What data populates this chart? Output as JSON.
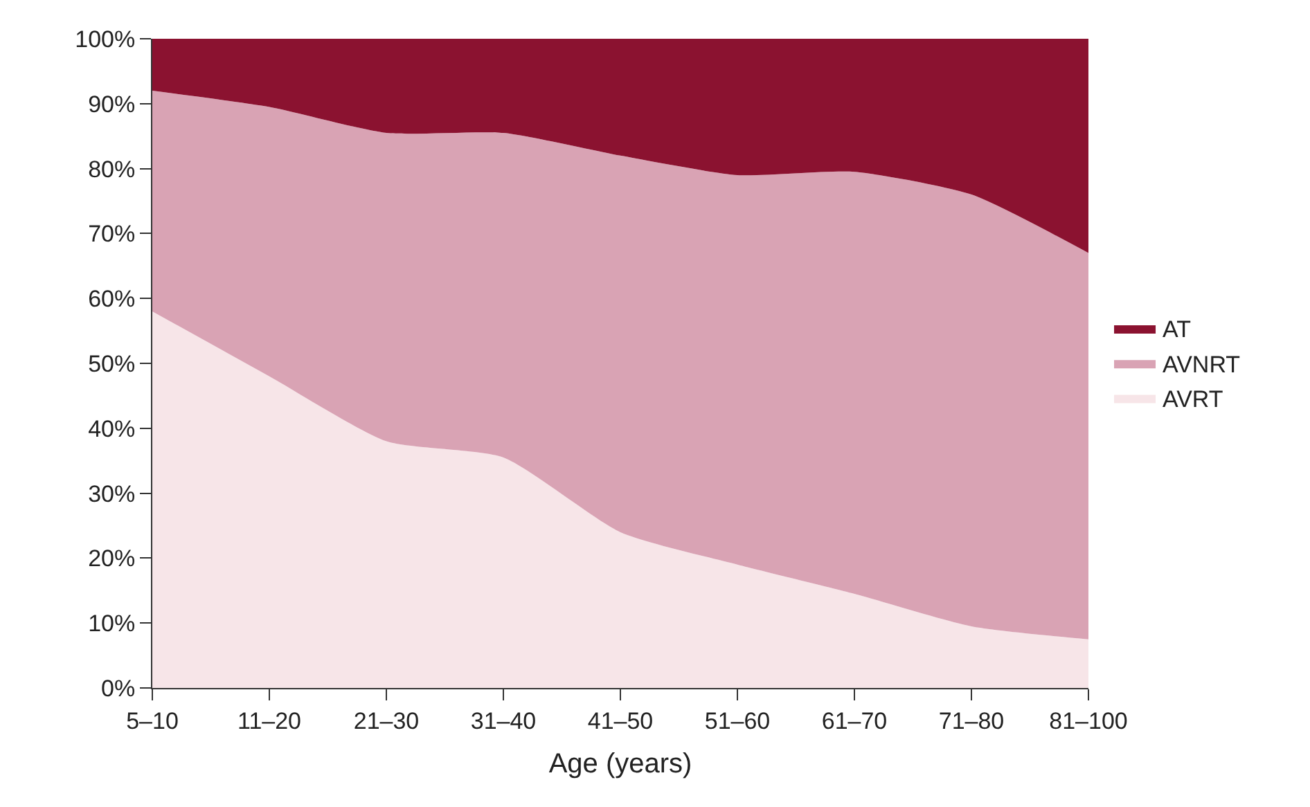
{
  "chart_data": {
    "type": "area",
    "stacked": true,
    "xlabel": "Age (years)",
    "categories": [
      "5–10",
      "11–20",
      "21–30",
      "31–40",
      "41–50",
      "51–60",
      "61–70",
      "71–80",
      "81–100"
    ],
    "series": [
      {
        "name": "AVRT",
        "color": "#f7e5e8",
        "values": [
          58,
          48,
          38,
          35.5,
          24,
          19,
          14.5,
          9.5,
          7.5
        ]
      },
      {
        "name": "AVNRT",
        "color": "#d9a3b4",
        "values": [
          34,
          41.5,
          47.5,
          50,
          58,
          60,
          65,
          66.5,
          59.5
        ]
      },
      {
        "name": "AT",
        "color": "#8b1230",
        "values": [
          8,
          10.5,
          14.5,
          14.5,
          18,
          21,
          20.5,
          24,
          33
        ]
      }
    ],
    "ylim": [
      0,
      100
    ],
    "yticks": [
      {
        "value": 0,
        "label": "0%"
      },
      {
        "value": 10,
        "label": "10%"
      },
      {
        "value": 20,
        "label": "20%"
      },
      {
        "value": 30,
        "label": "30%"
      },
      {
        "value": 40,
        "label": "40%"
      },
      {
        "value": 50,
        "label": "50%"
      },
      {
        "value": 60,
        "label": "60%"
      },
      {
        "value": 70,
        "label": "70%"
      },
      {
        "value": 80,
        "label": "80%"
      },
      {
        "value": 90,
        "label": "90%"
      },
      {
        "value": 100,
        "label": "100%"
      }
    ],
    "legend": "right"
  }
}
